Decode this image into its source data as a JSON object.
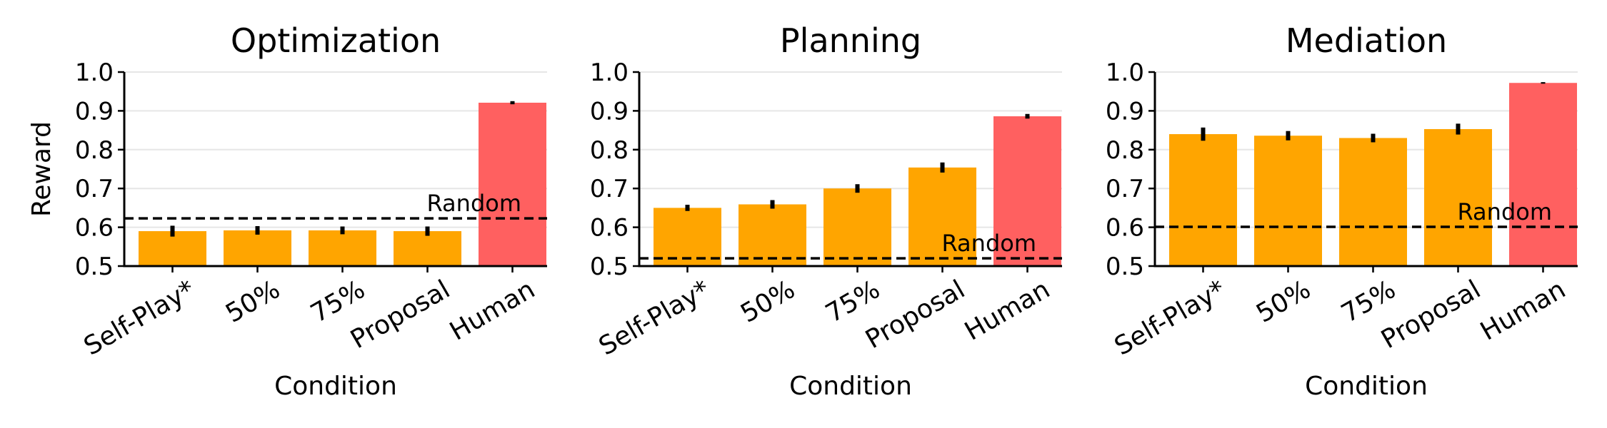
{
  "chart_data": [
    {
      "type": "bar",
      "title": "Optimization",
      "xlabel": "Condition",
      "ylabel": "Reward",
      "ylim": [
        0.5,
        1.0
      ],
      "yticks": [
        "0.5",
        "0.6",
        "0.7",
        "0.8",
        "0.9",
        "1.0"
      ],
      "categories": [
        "Self-Play*",
        "50%",
        "75%",
        "Proposal",
        "Human"
      ],
      "values": [
        0.59,
        0.592,
        0.592,
        0.59,
        0.921
      ],
      "error": [
        0.014,
        0.011,
        0.01,
        0.012,
        0.004
      ],
      "colors": [
        "#ffa500",
        "#ffa500",
        "#ffa500",
        "#ffa500",
        "#ff6060"
      ],
      "random_baseline": 0.623,
      "random_label": "Random",
      "grid": "horizontal",
      "legend": "none"
    },
    {
      "type": "bar",
      "title": "Planning",
      "xlabel": "Condition",
      "ylabel": "",
      "ylim": [
        0.5,
        1.0
      ],
      "yticks": [
        "0.5",
        "0.6",
        "0.7",
        "0.8",
        "0.9",
        "1.0"
      ],
      "categories": [
        "Self-Play*",
        "50%",
        "75%",
        "Proposal",
        "Human"
      ],
      "values": [
        0.65,
        0.659,
        0.7,
        0.754,
        0.886
      ],
      "error": [
        0.008,
        0.011,
        0.011,
        0.013,
        0.006
      ],
      "colors": [
        "#ffa500",
        "#ffa500",
        "#ffa500",
        "#ffa500",
        "#ff6060"
      ],
      "random_baseline": 0.52,
      "random_label": "Random",
      "grid": "horizontal",
      "legend": "none"
    },
    {
      "type": "bar",
      "title": "Mediation",
      "xlabel": "Condition",
      "ylabel": "",
      "ylim": [
        0.5,
        1.0
      ],
      "yticks": [
        "0.5",
        "0.6",
        "0.7",
        "0.8",
        "0.9",
        "1.0"
      ],
      "categories": [
        "Self-Play*",
        "50%",
        "75%",
        "Proposal",
        "Human"
      ],
      "values": [
        0.84,
        0.836,
        0.83,
        0.853,
        0.972
      ],
      "error": [
        0.017,
        0.012,
        0.011,
        0.014,
        0.002
      ],
      "colors": [
        "#ffa500",
        "#ffa500",
        "#ffa500",
        "#ffa500",
        "#ff6060"
      ],
      "random_baseline": 0.601,
      "random_label": "Random",
      "grid": "horizontal",
      "legend": "none"
    }
  ]
}
